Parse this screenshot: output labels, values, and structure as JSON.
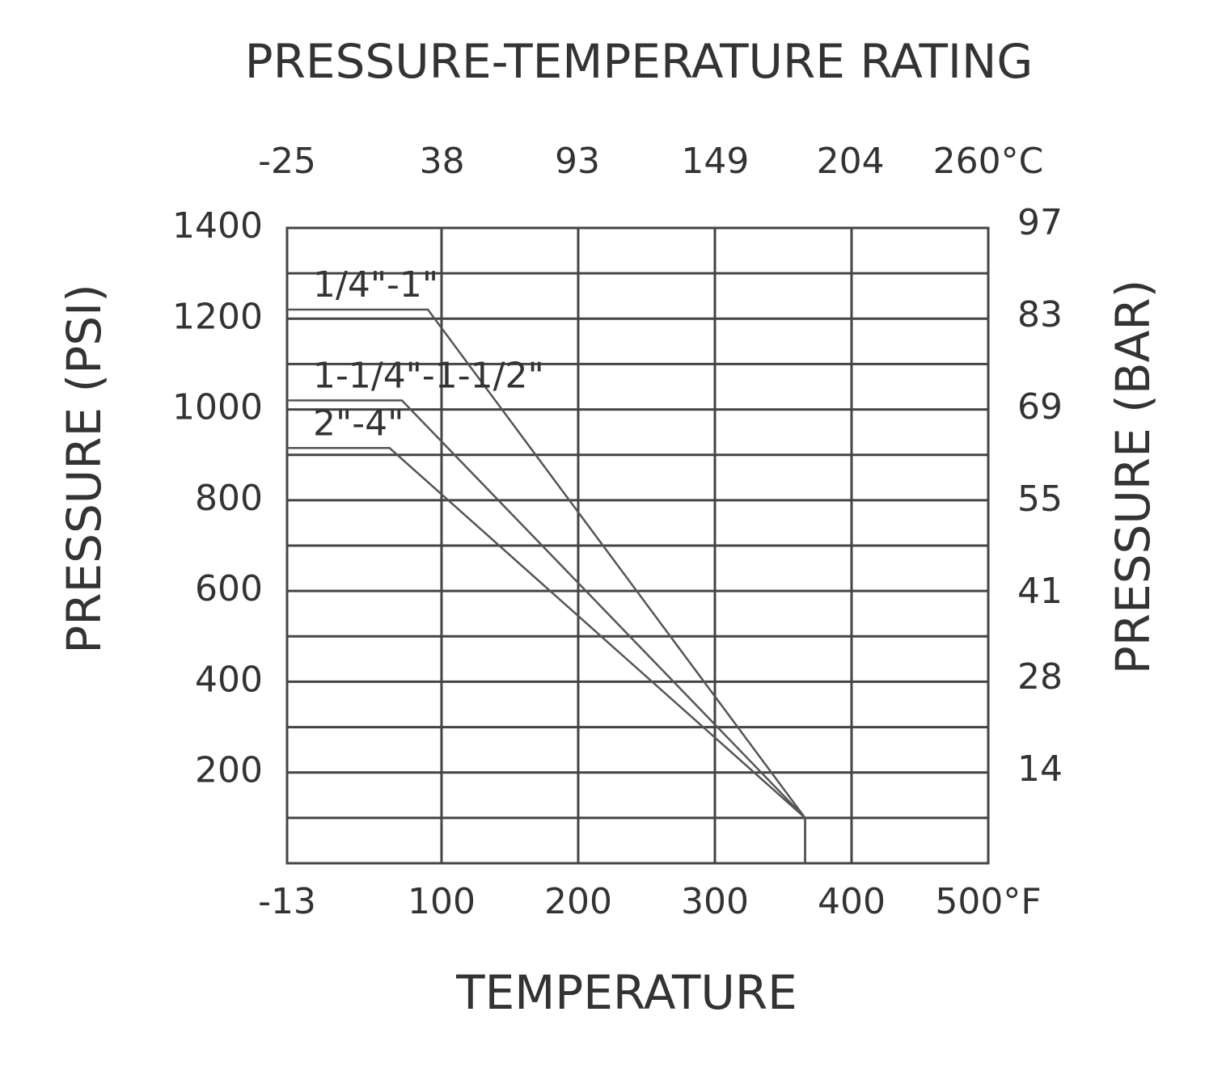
{
  "chart_data": {
    "type": "line",
    "title": "PRESSURE-TEMPERATURE RATING",
    "xlabel": "TEMPERATURE",
    "ylabel": "PRESSURE (PSI)",
    "y2label": "PRESSURE (BAR)",
    "xlim": [
      -13,
      500
    ],
    "xticks": [
      -13,
      100,
      200,
      300,
      400,
      {
        "value": 500,
        "label": "500°F"
      }
    ],
    "x2lim": [
      -25,
      260
    ],
    "x2ticks": [
      -25,
      38,
      93,
      149,
      204,
      {
        "value": 260,
        "label": "260°C"
      }
    ],
    "ylim": [
      0,
      1400
    ],
    "yticks": [
      200,
      400,
      600,
      800,
      1000,
      1200,
      1400
    ],
    "y_minor_ticks": [
      100,
      300,
      500,
      700,
      900,
      1100,
      1300
    ],
    "y2lim": [
      0,
      96.5
    ],
    "y2ticks": [
      14,
      28,
      41,
      55,
      69,
      83,
      97
    ],
    "grid": true,
    "series": [
      {
        "name": "1/4\"-1\"",
        "color": "#555555",
        "x": [
          -13,
          90,
          366,
          366
        ],
        "values": [
          1220,
          1220,
          100,
          0
        ]
      },
      {
        "name": "1-1/4\"-1-1/2\"",
        "color": "#555555",
        "x": [
          -13,
          71,
          366,
          366
        ],
        "values": [
          1020,
          1020,
          100,
          0
        ]
      },
      {
        "name": "2\"-4\"",
        "color": "#555555",
        "x": [
          -13,
          62,
          366,
          366
        ],
        "values": [
          915,
          915,
          100,
          0
        ]
      }
    ]
  }
}
